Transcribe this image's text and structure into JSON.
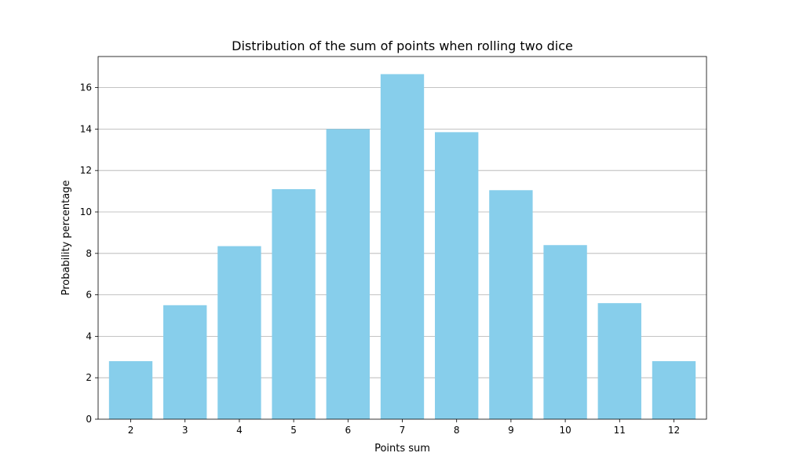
{
  "chart_data": {
    "type": "bar",
    "title": "Distribution of the sum of points when rolling two dice",
    "xlabel": "Points sum",
    "ylabel": "Probability percentage",
    "categories": [
      "2",
      "3",
      "4",
      "5",
      "6",
      "7",
      "8",
      "9",
      "10",
      "11",
      "12"
    ],
    "values": [
      2.8,
      5.5,
      8.35,
      11.1,
      14.0,
      16.65,
      13.85,
      11.05,
      8.4,
      5.6,
      2.8
    ],
    "ylim": [
      0,
      17.5
    ],
    "yticks": [
      0,
      2,
      4,
      6,
      8,
      10,
      12,
      14,
      16
    ],
    "grid": "y",
    "bar_color": "#87CEEB",
    "grid_color": "#b0b0b0"
  }
}
